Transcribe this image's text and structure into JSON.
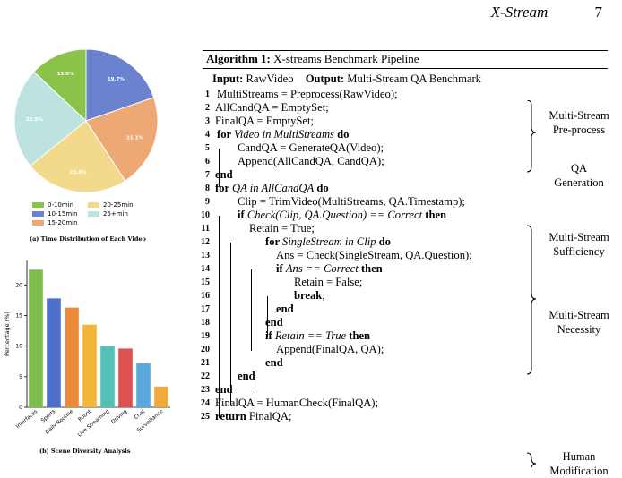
{
  "header": {
    "title": "X-Stream",
    "page_number": "7"
  },
  "figure_a": {
    "caption": "(a) Time Distribution of Each Video",
    "chart_data": {
      "type": "pie",
      "labels": [
        "0-10min",
        "10-15min",
        "15-20min",
        "20-25min",
        "25+min"
      ],
      "values": [
        13.0,
        19.7,
        21.1,
        23.4,
        22.8
      ],
      "value_labels": [
        "13.0%",
        "19.7%",
        "21.1%",
        "23.4%",
        "22.8%"
      ],
      "colors": [
        "#8bc34a",
        "#6b82cf",
        "#eea874",
        "#f3d98c",
        "#bde3e0"
      ],
      "legend_placement": "bottom"
    }
  },
  "figure_b": {
    "caption": "(b) Scene Diversity Analysis",
    "chart_data": {
      "type": "bar",
      "categories": [
        "Interfaces",
        "Sports",
        "Daily Routine",
        "Robot",
        "Live Streaming",
        "Driving",
        "Chat",
        "Surveillance"
      ],
      "values": [
        22.5,
        17.8,
        16.3,
        13.5,
        10.0,
        9.6,
        7.2,
        3.4
      ],
      "colors": [
        "#7cc04b",
        "#4f6fcd",
        "#ea8a3a",
        "#f2b63a",
        "#55c1b6",
        "#dd5151",
        "#5aa9dc",
        "#f0a93a"
      ],
      "ylabel": "Percentage (%)",
      "yticks": [
        0,
        5,
        10,
        15,
        20
      ],
      "ylim": [
        0,
        24
      ]
    }
  },
  "algorithm": {
    "title_label": "Algorithm 1:",
    "title_text": " X-streams Benchmark Pipeline",
    "input_label": "Input:",
    "input_value": " RawVideo",
    "output_label": "Output:",
    "output_value": " Multi-Stream QA Benchmark",
    "lines": [
      {
        "n": "1",
        "parts": [
          [
            "MultiStreams = Preprocess(RawVideo);",
            ""
          ]
        ]
      },
      {
        "n": "2",
        "parts": [
          [
            "AllCandQA = EmptySet;",
            ""
          ]
        ]
      },
      {
        "n": "3",
        "parts": [
          [
            "FinalQA = EmptySet;",
            ""
          ]
        ]
      },
      {
        "n": "4",
        "parts": [
          [
            "for ",
            "b"
          ],
          [
            "Video in MultiStreams",
            "i"
          ],
          [
            " do",
            "b"
          ]
        ]
      },
      {
        "n": "5",
        "parts": [
          [
            "CandQA = GenerateQA(Video);",
            ""
          ]
        ]
      },
      {
        "n": "6",
        "parts": [
          [
            "Append(AllCandQA, CandQA);",
            ""
          ]
        ]
      },
      {
        "n": "7",
        "parts": [
          [
            "end",
            "b"
          ]
        ]
      },
      {
        "n": "8",
        "parts": [
          [
            "for ",
            "b"
          ],
          [
            "QA in AllCandQA",
            "i"
          ],
          [
            " do",
            "b"
          ]
        ]
      },
      {
        "n": "9",
        "parts": [
          [
            "Clip = TrimVideo(MultiStreams, QA.Timestamp);",
            ""
          ]
        ]
      },
      {
        "n": "10",
        "parts": [
          [
            "if ",
            "b"
          ],
          [
            "Check(Clip, QA.Question) == Correct",
            "i"
          ],
          [
            " then",
            "b"
          ]
        ]
      },
      {
        "n": "11",
        "parts": [
          [
            "Retain = True;",
            ""
          ]
        ]
      },
      {
        "n": "12",
        "parts": [
          [
            "for ",
            "b"
          ],
          [
            "SingleStream in Clip",
            "i"
          ],
          [
            " do",
            "b"
          ]
        ]
      },
      {
        "n": "13",
        "parts": [
          [
            "Ans = Check(SingleStream, QA.Question);",
            ""
          ]
        ]
      },
      {
        "n": "14",
        "parts": [
          [
            "if ",
            "b"
          ],
          [
            "Ans == Correct",
            "i"
          ],
          [
            " then",
            "b"
          ]
        ]
      },
      {
        "n": "15",
        "parts": [
          [
            "Retain = False;",
            ""
          ]
        ]
      },
      {
        "n": "16",
        "parts": [
          [
            "break",
            "b"
          ],
          [
            ";",
            ""
          ]
        ]
      },
      {
        "n": "17",
        "parts": [
          [
            "end",
            "b"
          ]
        ]
      },
      {
        "n": "18",
        "parts": [
          [
            "end",
            "b"
          ]
        ]
      },
      {
        "n": "19",
        "parts": [
          [
            "if ",
            "b"
          ],
          [
            "Retain == True",
            "i"
          ],
          [
            " then",
            "b"
          ]
        ]
      },
      {
        "n": "20",
        "parts": [
          [
            "Append(FinalQA, QA);",
            ""
          ]
        ]
      },
      {
        "n": "21",
        "parts": [
          [
            "end",
            "b"
          ]
        ]
      },
      {
        "n": "22",
        "parts": [
          [
            "end",
            "b"
          ]
        ]
      },
      {
        "n": "23",
        "parts": [
          [
            "end",
            "b"
          ]
        ]
      },
      {
        "n": "24",
        "parts": [
          [
            "FinalQA = HumanCheck(FinalQA);",
            ""
          ]
        ]
      },
      {
        "n": "25",
        "parts": [
          [
            "return",
            "b"
          ],
          [
            " FinalQA;",
            ""
          ]
        ]
      }
    ],
    "annotations": [
      {
        "text": "Multi-Stream\nPre-process"
      },
      {
        "text": "QA\nGeneration"
      },
      {
        "text": "Multi-Stream\nSufficiency"
      },
      {
        "text": "Multi-Stream\nNecessity"
      },
      {
        "text": "Human\nModification"
      }
    ]
  }
}
